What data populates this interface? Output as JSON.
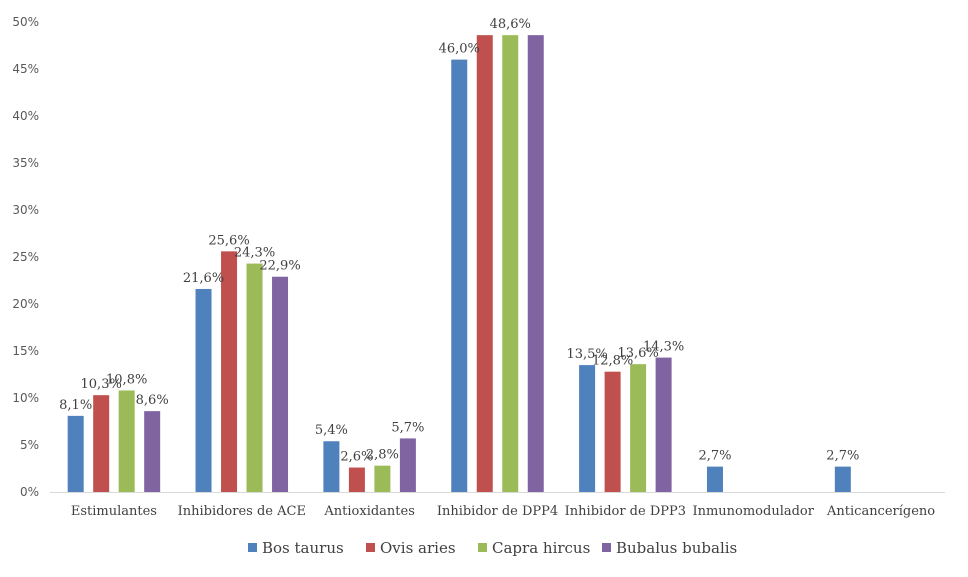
{
  "chart_data": {
    "type": "bar",
    "title": "",
    "xlabel": "",
    "ylabel": "",
    "ylim": [
      0,
      50
    ],
    "yticks": [
      "0%",
      "5%",
      "10%",
      "15%",
      "20%",
      "25%",
      "30%",
      "35%",
      "40%",
      "45%",
      "50%"
    ],
    "grid": false,
    "legend_position": "bottom",
    "categories": [
      "Estimulantes",
      "Inhibidores de ACE",
      "Antioxidantes",
      "Inhibidor de DPP4",
      "Inhibidor de DPP3",
      "Inmunomodulador",
      "Anticancerígeno"
    ],
    "series": [
      {
        "name": "Bos taurus",
        "color": "#4f81bd",
        "values": [
          8.1,
          21.6,
          5.4,
          46.0,
          13.5,
          2.7,
          2.7
        ],
        "labels": [
          "8,1%",
          "21,6%",
          "5,4%",
          "46,0%",
          "13,5%",
          "2,7%",
          "2,7%"
        ]
      },
      {
        "name": "Ovis aries",
        "color": "#c0504d",
        "values": [
          10.3,
          25.6,
          2.6,
          48.6,
          12.8,
          null,
          null
        ],
        "labels": [
          "10,3%",
          "25,6%",
          "2,6%",
          "",
          "12,8%",
          "",
          ""
        ]
      },
      {
        "name": "Capra hircus",
        "color": "#9bbb59",
        "values": [
          10.8,
          24.3,
          2.8,
          48.6,
          13.6,
          null,
          null
        ],
        "labels": [
          "10,8%",
          "24,3%",
          "2,8%",
          "48,6%",
          "13,6%",
          "",
          ""
        ]
      },
      {
        "name": "Bubalus bubalis",
        "color": "#8064a2",
        "values": [
          8.6,
          22.9,
          5.7,
          48.6,
          14.3,
          null,
          null
        ],
        "labels": [
          "8,6%",
          "22,9%",
          "5,7%",
          "",
          "14,3%",
          "",
          ""
        ]
      }
    ]
  }
}
